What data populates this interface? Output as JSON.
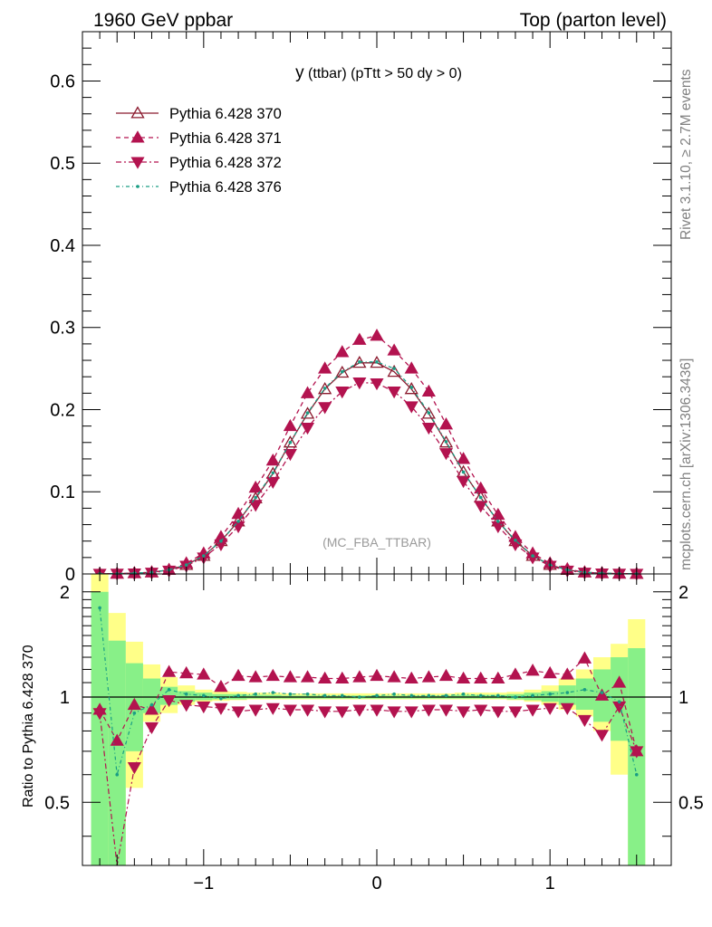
{
  "header": {
    "left": "1960 GeV ppbar",
    "right": "Top (parton level)"
  },
  "side": {
    "rivet": "Rivet 3.1.10, ≥ 2.7M events",
    "mcplots": "mcplots.cern.ch [arXiv:1306.3436]"
  },
  "chart_data": [
    {
      "type": "line",
      "title": "y (ttbar) (pTtt > 50 dy > 0)",
      "title_main": "y",
      "title_sub": "(ttbar) (pTtt > 50 dy > 0)",
      "watermark": "(MC_FBA_TTBAR)",
      "xlim": [
        -1.7,
        1.7
      ],
      "ylim": [
        0,
        0.66
      ],
      "yticks": [
        0,
        0.1,
        0.2,
        0.3,
        0.4,
        0.5,
        0.6
      ],
      "ytick_labels": [
        "0",
        "0.1",
        "0.2",
        "0.3",
        "0.4",
        "0.5",
        "0.6"
      ],
      "legend_position": "top-left",
      "x": [
        -1.6,
        -1.5,
        -1.4,
        -1.3,
        -1.2,
        -1.1,
        -1.0,
        -0.9,
        -0.8,
        -0.7,
        -0.6,
        -0.5,
        -0.4,
        -0.3,
        -0.2,
        -0.1,
        0.0,
        0.1,
        0.2,
        0.3,
        0.4,
        0.5,
        0.6,
        0.7,
        0.8,
        0.9,
        1.0,
        1.1,
        1.2,
        1.3,
        1.4,
        1.5
      ],
      "series": [
        {
          "name": "Pythia 6.428 370",
          "color": "#8b1a2e",
          "marker": "triangle-up-open",
          "dash": "",
          "values": [
            0.0002,
            0.0004,
            0.001,
            0.002,
            0.005,
            0.011,
            0.022,
            0.04,
            0.064,
            0.092,
            0.122,
            0.16,
            0.195,
            0.225,
            0.245,
            0.257,
            0.257,
            0.246,
            0.225,
            0.195,
            0.16,
            0.124,
            0.093,
            0.064,
            0.04,
            0.022,
            0.011,
            0.005,
            0.002,
            0.001,
            0.0004,
            0.0002
          ]
        },
        {
          "name": "Pythia 6.428 371",
          "color": "#b3134f",
          "marker": "triangle-up",
          "dash": "5,4",
          "values": [
            0.0002,
            0.0003,
            0.001,
            0.002,
            0.005,
            0.013,
            0.025,
            0.045,
            0.073,
            0.105,
            0.138,
            0.18,
            0.22,
            0.25,
            0.27,
            0.285,
            0.29,
            0.272,
            0.25,
            0.222,
            0.182,
            0.14,
            0.104,
            0.072,
            0.045,
            0.025,
            0.013,
            0.006,
            0.002,
            0.001,
            0.0004,
            0.0002
          ]
        },
        {
          "name": "Pythia 6.428 372",
          "color": "#b3134f",
          "marker": "triangle-down",
          "dash": "6,3,2,3",
          "values": [
            0.0002,
            0.0003,
            0.0006,
            0.0015,
            0.004,
            0.01,
            0.02,
            0.036,
            0.058,
            0.084,
            0.112,
            0.146,
            0.178,
            0.203,
            0.222,
            0.233,
            0.232,
            0.222,
            0.204,
            0.178,
            0.147,
            0.113,
            0.083,
            0.058,
            0.036,
            0.02,
            0.01,
            0.004,
            0.0015,
            0.0006,
            0.0003,
            0.0002
          ]
        },
        {
          "name": "Pythia 6.428 376",
          "color": "#1a9e84",
          "marker": "dot",
          "dash": "4,3,1,3",
          "values": [
            0.0002,
            0.0004,
            0.001,
            0.002,
            0.005,
            0.011,
            0.022,
            0.04,
            0.064,
            0.093,
            0.123,
            0.16,
            0.196,
            0.226,
            0.246,
            0.258,
            0.258,
            0.25,
            0.227,
            0.196,
            0.161,
            0.124,
            0.093,
            0.064,
            0.041,
            0.022,
            0.011,
            0.005,
            0.002,
            0.001,
            0.0004,
            0.0002
          ]
        }
      ]
    },
    {
      "type": "line",
      "ylabel": "Ratio to Pythia 6.428 370",
      "xlim": [
        -1.7,
        1.7
      ],
      "ylim": [
        0.33,
        2.25
      ],
      "xticks": [
        -1,
        0,
        1
      ],
      "xtick_labels": [
        "−1",
        "0",
        "1"
      ],
      "yticks": [
        0.5,
        1,
        2
      ],
      "ytick_labels": [
        "0.5",
        "1",
        "2"
      ],
      "x": [
        -1.6,
        -1.5,
        -1.4,
        -1.3,
        -1.2,
        -1.1,
        -1.0,
        -0.9,
        -0.8,
        -0.7,
        -0.6,
        -0.5,
        -0.4,
        -0.3,
        -0.2,
        -0.1,
        0.0,
        0.1,
        0.2,
        0.3,
        0.4,
        0.5,
        0.6,
        0.7,
        0.8,
        0.9,
        1.0,
        1.1,
        1.2,
        1.3,
        1.4,
        1.5
      ],
      "band_green": [
        [
          0.2,
          2.0
        ],
        [
          0.2,
          1.45
        ],
        [
          0.7,
          1.25
        ],
        [
          0.9,
          1.13
        ],
        [
          0.95,
          1.07
        ],
        [
          0.97,
          1.04
        ],
        [
          0.98,
          1.03
        ],
        [
          0.985,
          1.02
        ],
        [
          0.985,
          1.02
        ],
        [
          0.99,
          1.015
        ],
        [
          0.99,
          1.015
        ],
        [
          0.99,
          1.01
        ],
        [
          0.99,
          1.01
        ],
        [
          0.99,
          1.01
        ],
        [
          0.99,
          1.01
        ],
        [
          0.99,
          1.01
        ],
        [
          0.99,
          1.01
        ],
        [
          0.99,
          1.01
        ],
        [
          0.99,
          1.01
        ],
        [
          0.99,
          1.01
        ],
        [
          0.99,
          1.01
        ],
        [
          0.99,
          1.015
        ],
        [
          0.99,
          1.015
        ],
        [
          0.99,
          1.015
        ],
        [
          0.985,
          1.02
        ],
        [
          0.98,
          1.03
        ],
        [
          0.97,
          1.04
        ],
        [
          0.95,
          1.08
        ],
        [
          0.92,
          1.13
        ],
        [
          0.85,
          1.2
        ],
        [
          0.75,
          1.3
        ],
        [
          0.2,
          1.38
        ]
      ],
      "band_yellow": [
        [
          0.2,
          2.25
        ],
        [
          0.2,
          1.74
        ],
        [
          0.55,
          1.44
        ],
        [
          0.85,
          1.24
        ],
        [
          0.9,
          1.14
        ],
        [
          0.95,
          1.08
        ],
        [
          0.97,
          1.05
        ],
        [
          0.975,
          1.04
        ],
        [
          0.98,
          1.035
        ],
        [
          0.985,
          1.03
        ],
        [
          0.985,
          1.03
        ],
        [
          0.985,
          1.025
        ],
        [
          0.985,
          1.025
        ],
        [
          0.985,
          1.025
        ],
        [
          0.985,
          1.025
        ],
        [
          0.985,
          1.025
        ],
        [
          0.985,
          1.025
        ],
        [
          0.985,
          1.025
        ],
        [
          0.985,
          1.025
        ],
        [
          0.985,
          1.025
        ],
        [
          0.985,
          1.025
        ],
        [
          0.985,
          1.03
        ],
        [
          0.985,
          1.03
        ],
        [
          0.985,
          1.03
        ],
        [
          0.98,
          1.035
        ],
        [
          0.97,
          1.05
        ],
        [
          0.95,
          1.08
        ],
        [
          0.92,
          1.13
        ],
        [
          0.88,
          1.2
        ],
        [
          0.8,
          1.3
        ],
        [
          0.6,
          1.42
        ],
        [
          0.2,
          1.67
        ]
      ],
      "series": [
        {
          "name": "Pythia 6.428 371",
          "color": "#b3134f",
          "marker": "triangle-up",
          "dash": "5,4",
          "values": [
            0.92,
            0.75,
            0.95,
            0.92,
            1.18,
            1.17,
            1.16,
            1.07,
            1.15,
            1.14,
            1.15,
            1.14,
            1.14,
            1.13,
            1.13,
            1.14,
            1.15,
            1.14,
            1.13,
            1.14,
            1.15,
            1.13,
            1.13,
            1.13,
            1.16,
            1.19,
            1.17,
            1.16,
            1.29,
            1.01,
            1.1,
            0.7
          ]
        },
        {
          "name": "Pythia 6.428 372",
          "color": "#b3134f",
          "marker": "triangle-down",
          "dash": "6,3,2,3",
          "values": [
            0.9,
            0.2,
            0.63,
            0.82,
            0.98,
            0.95,
            0.94,
            0.93,
            0.91,
            0.92,
            0.93,
            0.92,
            0.92,
            0.91,
            0.91,
            0.92,
            0.92,
            0.91,
            0.91,
            0.92,
            0.92,
            0.91,
            0.92,
            0.91,
            0.91,
            0.92,
            0.93,
            0.93,
            0.86,
            0.78,
            0.94,
            0.7
          ]
        },
        {
          "name": "Pythia 6.428 376",
          "color": "#1a9e84",
          "marker": "dot",
          "dash": "4,3,1,3",
          "values": [
            1.8,
            0.6,
            0.9,
            0.95,
            1.05,
            1.02,
            1.01,
            0.99,
            1.01,
            1.02,
            1.03,
            1.02,
            1.02,
            1.01,
            1.01,
            1.0,
            1.01,
            1.02,
            1.01,
            1.01,
            1.01,
            1.02,
            1.01,
            1.01,
            1.0,
            1.01,
            1.02,
            1.03,
            1.05,
            1.03,
            0.97,
            0.6
          ]
        }
      ]
    }
  ]
}
